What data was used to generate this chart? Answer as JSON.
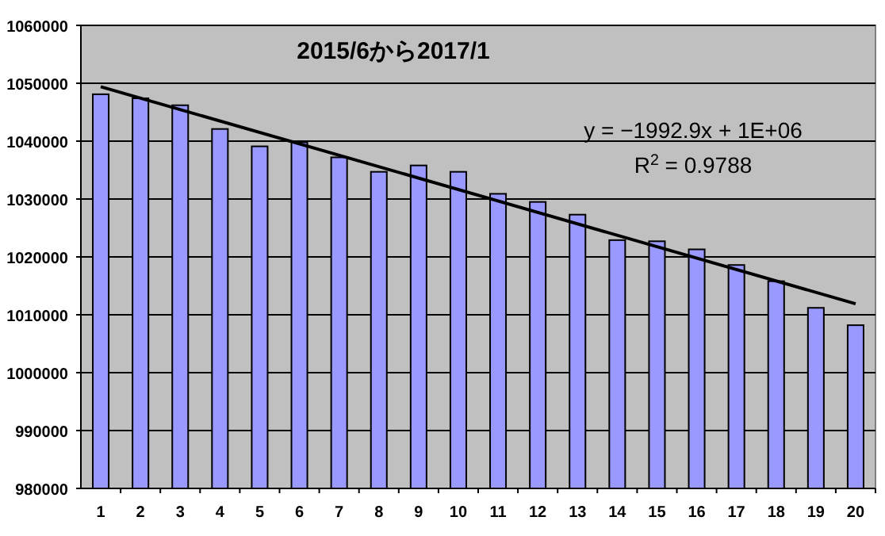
{
  "chart_data": {
    "type": "bar",
    "title": "2015/6から2017/1",
    "x": [
      1,
      2,
      3,
      4,
      5,
      6,
      7,
      8,
      9,
      10,
      11,
      12,
      13,
      14,
      15,
      16,
      17,
      18,
      19,
      20
    ],
    "xlim": [
      0.5,
      20.5
    ],
    "xticks": [
      1,
      2,
      3,
      4,
      5,
      6,
      7,
      8,
      9,
      10,
      11,
      12,
      13,
      14,
      15,
      16,
      17,
      18,
      19,
      20
    ],
    "ylim": [
      980000,
      1060000
    ],
    "yticks": [
      980000,
      990000,
      1000000,
      1010000,
      1020000,
      1030000,
      1040000,
      1050000,
      1060000
    ],
    "grid": "y",
    "annotations": [
      "y = −1992.9x + 1E+06",
      "R$^{2}$ = 0.9788"
    ],
    "series": [
      {
        "color": "#9999ff",
        "values": [
          1048100,
          1047400,
          1046200,
          1042100,
          1039100,
          1039800,
          1037200,
          1034700,
          1035800,
          1034700,
          1030900,
          1029500,
          1027300,
          1022900,
          1022700,
          1021300,
          1018600,
          1015800,
          1011200,
          1008200
        ]
      },
      {
        "type": "line",
        "color": "#000000",
        "x": [
          1,
          20
        ],
        "values": [
          1049400,
          1011900
        ]
      }
    ]
  }
}
